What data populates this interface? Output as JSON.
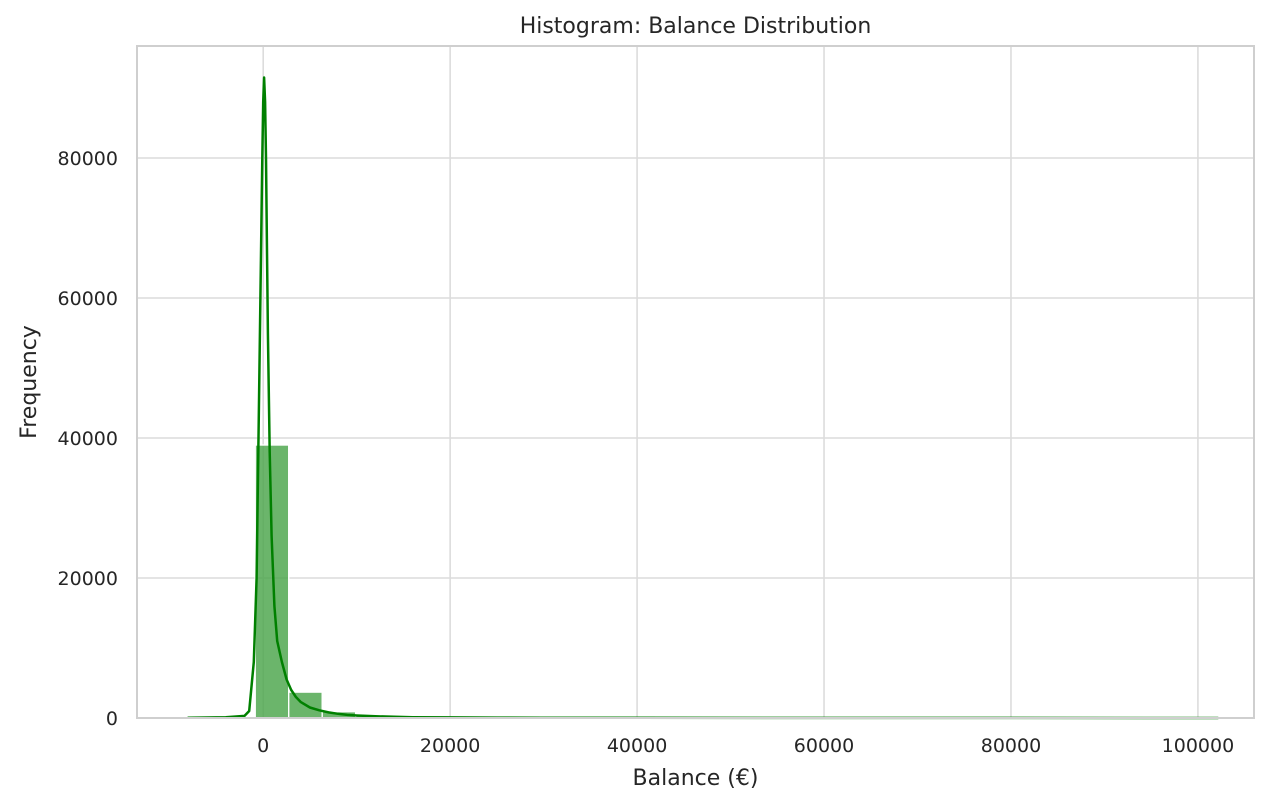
{
  "chart_data": {
    "type": "bar",
    "title": "Histogram: Balance Distribution",
    "xlabel": "Balance (€)",
    "ylabel": "Frequency",
    "xlim": [
      -13500,
      106000
    ],
    "ylim": [
      0,
      96000
    ],
    "x_ticks": [
      0,
      20000,
      40000,
      60000,
      80000,
      100000
    ],
    "x_tick_labels": [
      "0",
      "20000",
      "40000",
      "60000",
      "80000",
      "100000"
    ],
    "y_ticks": [
      0,
      20000,
      40000,
      60000,
      80000
    ],
    "y_tick_labels": [
      "0",
      "20000",
      "40000",
      "60000",
      "80000"
    ],
    "grid": true,
    "bar_color": "#4aa54a",
    "kde_color": "#008000",
    "bins": [
      {
        "x0": -8019,
        "x1": -4436,
        "value": 5
      },
      {
        "x0": -4436,
        "x1": -853,
        "value": 60
      },
      {
        "x0": -853,
        "x1": 2730,
        "value": 39000
      },
      {
        "x0": 2730,
        "x1": 6313,
        "value": 3700
      },
      {
        "x0": 6313,
        "x1": 9896,
        "value": 900
      },
      {
        "x0": 9896,
        "x1": 13479,
        "value": 350
      },
      {
        "x0": 13479,
        "x1": 17062,
        "value": 180
      },
      {
        "x0": 17062,
        "x1": 20645,
        "value": 100
      },
      {
        "x0": 20645,
        "x1": 24228,
        "value": 60
      },
      {
        "x0": 24228,
        "x1": 27811,
        "value": 40
      },
      {
        "x0": 27811,
        "x1": 31394,
        "value": 25
      },
      {
        "x0": 31394,
        "x1": 34977,
        "value": 15
      },
      {
        "x0": 34977,
        "x1": 38560,
        "value": 10
      },
      {
        "x0": 38560,
        "x1": 42143,
        "value": 8
      },
      {
        "x0": 42143,
        "x1": 45726,
        "value": 6
      },
      {
        "x0": 45726,
        "x1": 49309,
        "value": 5
      },
      {
        "x0": 49309,
        "x1": 52892,
        "value": 4
      },
      {
        "x0": 52892,
        "x1": 56475,
        "value": 3
      },
      {
        "x0": 56475,
        "x1": 60058,
        "value": 3
      },
      {
        "x0": 60058,
        "x1": 63641,
        "value": 2
      },
      {
        "x0": 63641,
        "x1": 67224,
        "value": 2
      },
      {
        "x0": 67224,
        "x1": 70807,
        "value": 1
      },
      {
        "x0": 70807,
        "x1": 74390,
        "value": 1
      },
      {
        "x0": 74390,
        "x1": 77973,
        "value": 1
      },
      {
        "x0": 77973,
        "x1": 81556,
        "value": 1
      },
      {
        "x0": 81556,
        "x1": 85139,
        "value": 1
      },
      {
        "x0": 85139,
        "x1": 88722,
        "value": 1
      },
      {
        "x0": 88722,
        "x1": 92305,
        "value": 1
      },
      {
        "x0": 92305,
        "x1": 95888,
        "value": 1
      },
      {
        "x0": 95888,
        "x1": 102127,
        "value": 1
      }
    ],
    "kde": {
      "x": [
        -8019,
        -4000,
        -2000,
        -1500,
        -1000,
        -700,
        -500,
        -300,
        -100,
        0,
        100,
        200,
        300,
        400,
        500,
        700,
        900,
        1200,
        1500,
        2000,
        2500,
        3000,
        3500,
        4000,
        5000,
        6000,
        7000,
        8000,
        9000,
        10000,
        12000,
        14000,
        16000,
        20000,
        25000,
        30000,
        40000,
        60000,
        80000,
        100000,
        102127
      ],
      "y": [
        40,
        100,
        300,
        1000,
        8000,
        20000,
        40000,
        60000,
        80000,
        88000,
        91500,
        88000,
        80000,
        68000,
        55000,
        38000,
        26000,
        16000,
        11000,
        8000,
        5500,
        4000,
        3000,
        2300,
        1500,
        1100,
        800,
        600,
        450,
        350,
        250,
        180,
        120,
        80,
        60,
        40,
        25,
        15,
        10,
        5,
        5
      ]
    }
  }
}
